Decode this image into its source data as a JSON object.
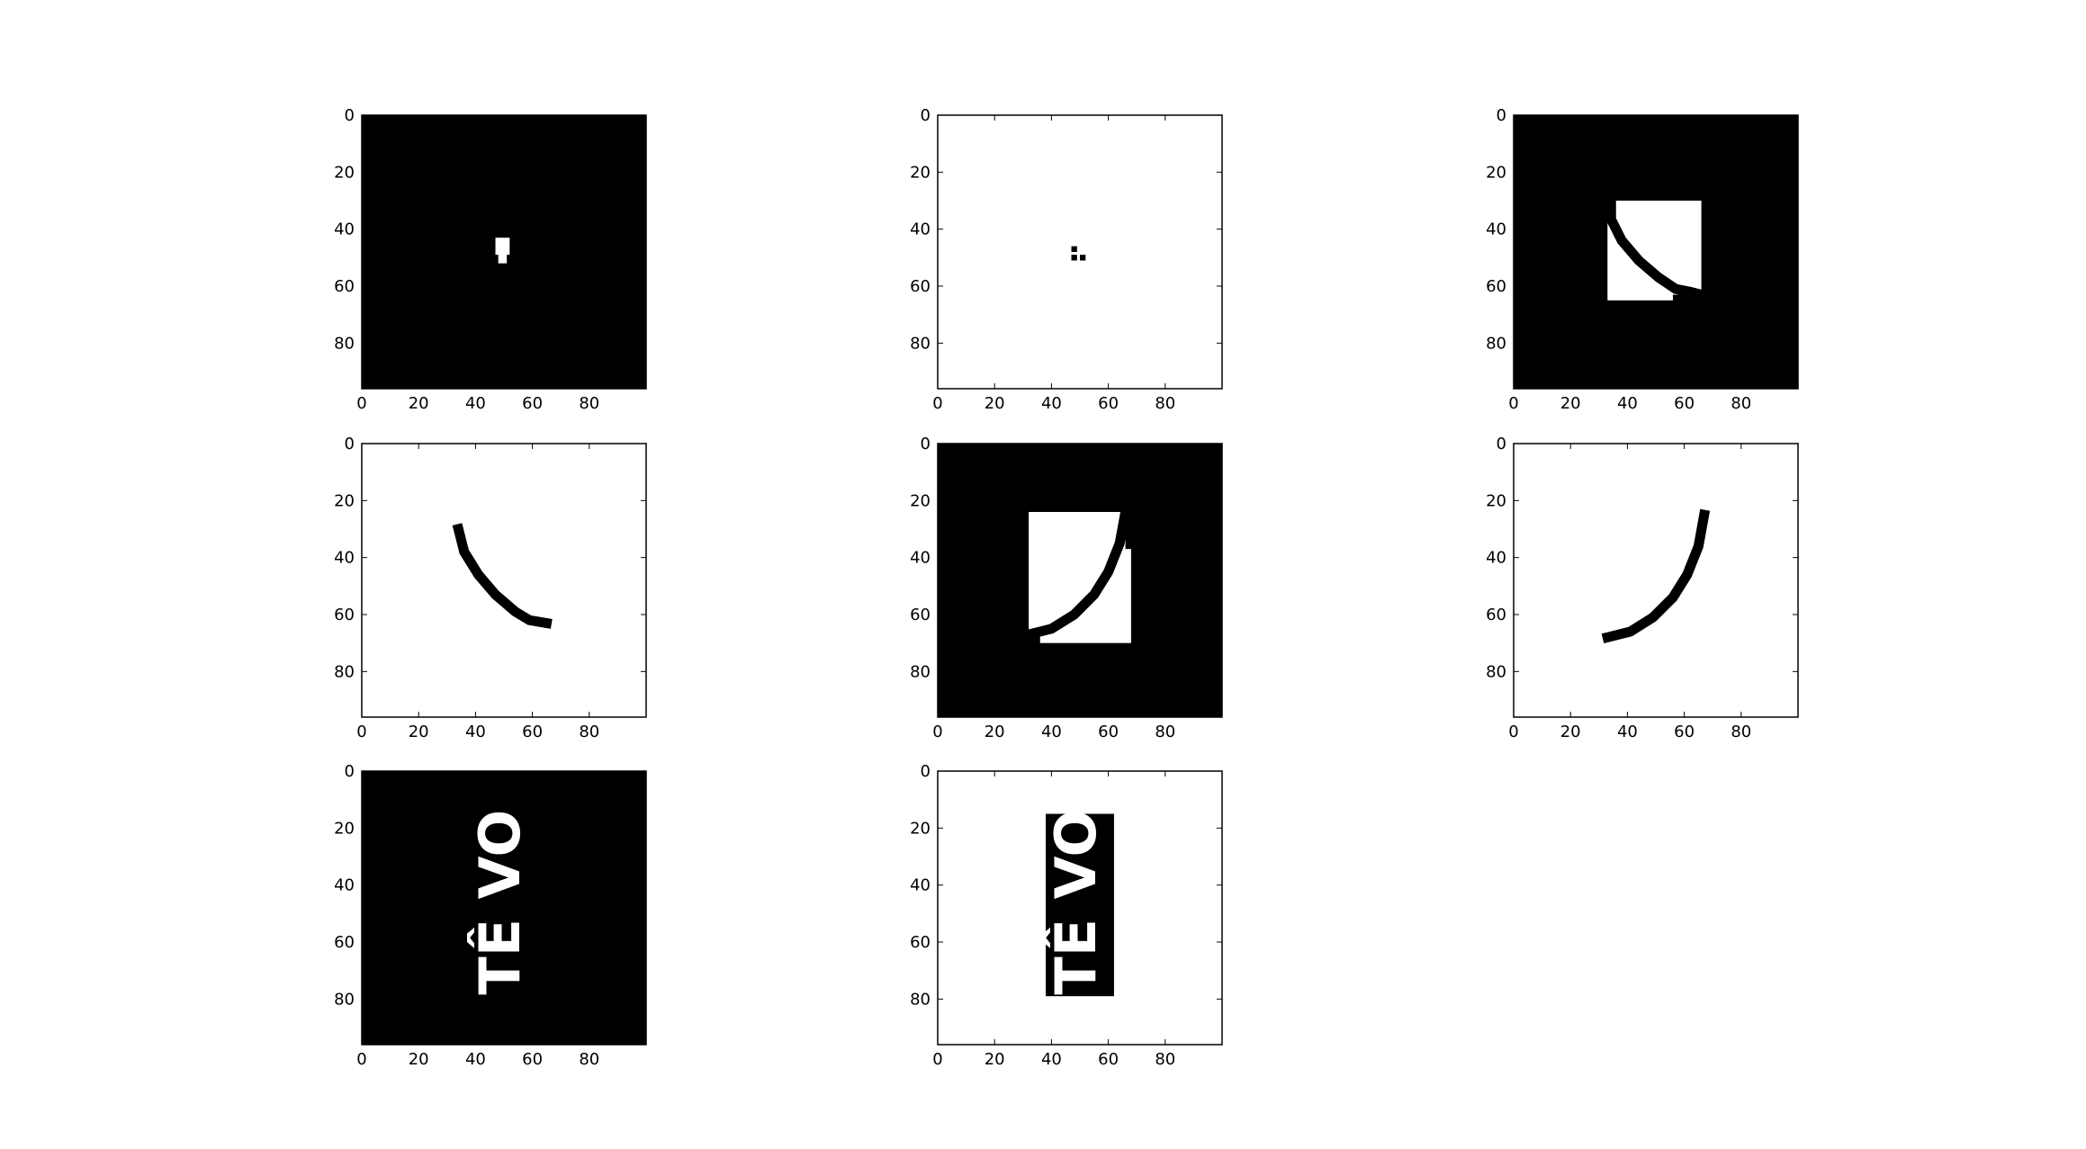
{
  "chart_data": [
    {
      "type": "image",
      "background": "#000000",
      "foreground": "#ffffff",
      "xlim": [
        0,
        100
      ],
      "ylim": [
        96,
        0
      ],
      "xticks": [
        "0",
        "20",
        "40",
        "60",
        "80"
      ],
      "yticks": [
        "0",
        "20",
        "40",
        "60",
        "80"
      ],
      "rects": [
        [
          47,
          43,
          52,
          49
        ],
        [
          48,
          48,
          51,
          52
        ]
      ],
      "arc": null,
      "text": null
    },
    {
      "type": "image",
      "background": "#ffffff",
      "foreground": "#000000",
      "xlim": [
        0,
        100
      ],
      "ylim": [
        96,
        0
      ],
      "xticks": [
        "0",
        "20",
        "40",
        "60",
        "80"
      ],
      "yticks": [
        "0",
        "20",
        "40",
        "60",
        "80"
      ],
      "rects": [
        [
          47,
          46,
          49,
          48
        ],
        [
          47,
          49,
          49,
          51
        ],
        [
          50,
          49,
          52,
          51
        ]
      ],
      "arc": null,
      "text": null
    },
    {
      "type": "image",
      "background": "#000000",
      "foreground": "#ffffff",
      "xlim": [
        0,
        100
      ],
      "ylim": [
        96,
        0
      ],
      "xticks": [
        "0",
        "20",
        "40",
        "60",
        "80"
      ],
      "yticks": [
        "0",
        "20",
        "40",
        "60",
        "80"
      ],
      "rects": [
        [
          36,
          30,
          66,
          63
        ],
        [
          33,
          36,
          56,
          65
        ]
      ],
      "arc": {
        "points": [
          [
            34,
            36
          ],
          [
            38,
            44
          ],
          [
            44,
            51
          ],
          [
            51,
            57
          ],
          [
            57,
            61
          ],
          [
            62,
            62
          ],
          [
            66,
            63
          ]
        ],
        "color": "#000000"
      },
      "text": null
    },
    {
      "type": "image",
      "background": "#ffffff",
      "foreground": "#000000",
      "xlim": [
        0,
        100
      ],
      "ylim": [
        96,
        0
      ],
      "xticks": [
        "0",
        "20",
        "40",
        "60",
        "80"
      ],
      "yticks": [
        "0",
        "20",
        "40",
        "60",
        "80"
      ],
      "rects": [],
      "arc": {
        "points": [
          [
            34,
            30
          ],
          [
            36,
            38
          ],
          [
            41,
            46
          ],
          [
            47,
            53
          ],
          [
            54,
            59
          ],
          [
            59,
            62
          ],
          [
            65,
            63
          ]
        ],
        "color": "#000000"
      },
      "text": null
    },
    {
      "type": "image",
      "background": "#000000",
      "foreground": "#ffffff",
      "xlim": [
        0,
        100
      ],
      "ylim": [
        96,
        0
      ],
      "xticks": [
        "0",
        "20",
        "40",
        "60",
        "80"
      ],
      "yticks": [
        "0",
        "20",
        "40",
        "60",
        "80"
      ],
      "rects": [
        [
          32,
          24,
          66,
          66
        ],
        [
          36,
          37,
          68,
          70
        ]
      ],
      "arc": {
        "points": [
          [
            32,
            67
          ],
          [
            40,
            65
          ],
          [
            48,
            60
          ],
          [
            55,
            53
          ],
          [
            60,
            45
          ],
          [
            64,
            35
          ],
          [
            66,
            24
          ]
        ],
        "color": "#000000"
      },
      "text": null
    },
    {
      "type": "image",
      "background": "#ffffff",
      "foreground": "#000000",
      "xlim": [
        0,
        100
      ],
      "ylim": [
        96,
        0
      ],
      "xticks": [
        "0",
        "20",
        "40",
        "60",
        "80"
      ],
      "yticks": [
        "0",
        "20",
        "40",
        "60",
        "80"
      ],
      "rects": [],
      "arc": {
        "points": [
          [
            33,
            68
          ],
          [
            41,
            66
          ],
          [
            49,
            61
          ],
          [
            56,
            54
          ],
          [
            61,
            46
          ],
          [
            65,
            36
          ],
          [
            67,
            25
          ]
        ],
        "color": "#000000"
      },
      "text": null
    },
    {
      "type": "image",
      "background": "#000000",
      "foreground": "#ffffff",
      "xlim": [
        0,
        100
      ],
      "ylim": [
        96,
        0
      ],
      "xticks": [
        "0",
        "20",
        "40",
        "60",
        "80"
      ],
      "yticks": [
        "0",
        "20",
        "40",
        "60",
        "80"
      ],
      "rects": [],
      "arc": null,
      "text": {
        "content": "TÊ VO",
        "color": "#ffffff"
      }
    },
    {
      "type": "image",
      "background": "#ffffff",
      "foreground": "#000000",
      "xlim": [
        0,
        100
      ],
      "ylim": [
        96,
        0
      ],
      "xticks": [
        "0",
        "20",
        "40",
        "60",
        "80"
      ],
      "yticks": [
        "0",
        "20",
        "40",
        "60",
        "80"
      ],
      "rects": [
        [
          38,
          15,
          62,
          79
        ]
      ],
      "arc": null,
      "text": {
        "content": "TÊ VO",
        "color": "#ffffff"
      }
    }
  ]
}
